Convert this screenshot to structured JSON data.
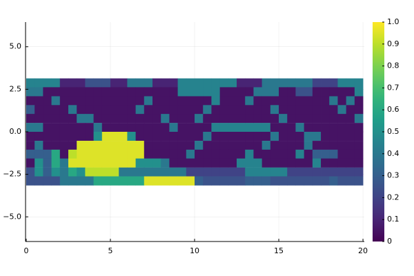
{
  "chart_data": {
    "type": "heatmap",
    "x": [
      0.25,
      0.75,
      1.25,
      1.75,
      2.25,
      2.75,
      3.25,
      3.75,
      4.25,
      4.75,
      5.25,
      5.75,
      6.25,
      6.75,
      7.25,
      7.75,
      8.25,
      8.75,
      9.25,
      9.75,
      10.25,
      10.75,
      11.25,
      11.75,
      12.25,
      12.75,
      13.25,
      13.75,
      14.25,
      14.75,
      15.25,
      15.75,
      16.25,
      16.75,
      17.25,
      17.75,
      18.25,
      18.75,
      19.25,
      19.75
    ],
    "y": [
      2.88,
      2.36,
      1.83,
      1.31,
      0.79,
      0.26,
      -0.26,
      -0.79,
      -1.31,
      -1.83,
      -2.36,
      -2.88
    ],
    "z": [
      [
        0.45,
        0.45,
        0.45,
        0.45,
        0.1,
        0.1,
        0.1,
        0.25,
        0.25,
        0.25,
        0.1,
        0.1,
        0.4,
        0.4,
        0.4,
        0.1,
        0.1,
        0.1,
        0.45,
        0.45,
        0.45,
        0.45,
        0.45,
        0.45,
        0.45,
        0.1,
        0.1,
        0.1,
        0.4,
        0.4,
        0.4,
        0.4,
        0.4,
        0.4,
        0.2,
        0.2,
        0.2,
        0.45,
        0.45,
        0.45
      ],
      [
        0.4,
        0.4,
        0.05,
        0.05,
        0.05,
        0.05,
        0.05,
        0.05,
        0.05,
        0.05,
        0.05,
        0.05,
        0.05,
        0.05,
        0.05,
        0.05,
        0.05,
        0.05,
        0.45,
        0.45,
        0.45,
        0.45,
        0.45,
        0.05,
        0.05,
        0.05,
        0.05,
        0.4,
        0.4,
        0.4,
        0.05,
        0.05,
        0.25,
        0.25,
        0.05,
        0.05,
        0.05,
        0.05,
        0.05,
        0.45
      ],
      [
        0.05,
        0.05,
        0.05,
        0.4,
        0.05,
        0.05,
        0.05,
        0.05,
        0.05,
        0.05,
        0.05,
        0.05,
        0.05,
        0.05,
        0.4,
        0.05,
        0.05,
        0.05,
        0.05,
        0.05,
        0.05,
        0.05,
        0.45,
        0.05,
        0.05,
        0.05,
        0.4,
        0.05,
        0.05,
        0.05,
        0.05,
        0.05,
        0.05,
        0.05,
        0.05,
        0.05,
        0.4,
        0.05,
        0.4,
        0.05
      ],
      [
        0.3,
        0.05,
        0.05,
        0.05,
        0.05,
        0.4,
        0.05,
        0.05,
        0.05,
        0.05,
        0.05,
        0.05,
        0.05,
        0.4,
        0.05,
        0.05,
        0.05,
        0.05,
        0.05,
        0.05,
        0.05,
        0.4,
        0.05,
        0.05,
        0.05,
        0.05,
        0.05,
        0.05,
        0.05,
        0.4,
        0.05,
        0.05,
        0.05,
        0.05,
        0.05,
        0.05,
        0.05,
        0.4,
        0.05,
        0.05
      ],
      [
        0.05,
        0.05,
        0.05,
        0.05,
        0.05,
        0.05,
        0.4,
        0.4,
        0.05,
        0.05,
        0.05,
        0.05,
        0.05,
        0.05,
        0.05,
        0.05,
        0.4,
        0.05,
        0.05,
        0.05,
        0.4,
        0.05,
        0.05,
        0.05,
        0.05,
        0.05,
        0.05,
        0.05,
        0.05,
        0.05,
        0.4,
        0.05,
        0.05,
        0.05,
        0.05,
        0.05,
        0.05,
        0.05,
        0.05,
        0.4
      ],
      [
        0.4,
        0.4,
        0.05,
        0.05,
        0.05,
        0.05,
        0.05,
        0.05,
        0.4,
        0.05,
        0.05,
        0.05,
        0.05,
        0.05,
        0.05,
        0.05,
        0.05,
        0.4,
        0.05,
        0.05,
        0.05,
        0.05,
        0.45,
        0.45,
        0.45,
        0.45,
        0.45,
        0.45,
        0.45,
        0.05,
        0.05,
        0.05,
        0.4,
        0.05,
        0.05,
        0.05,
        0.05,
        0.05,
        0.05,
        0.05
      ],
      [
        0.05,
        0.05,
        0.05,
        0.05,
        0.05,
        0.05,
        0.05,
        0.05,
        0.5,
        0.95,
        0.95,
        0.95,
        0.5,
        0.05,
        0.05,
        0.05,
        0.05,
        0.05,
        0.05,
        0.05,
        0.05,
        0.4,
        0.05,
        0.05,
        0.05,
        0.05,
        0.05,
        0.05,
        0.05,
        0.4,
        0.05,
        0.05,
        0.05,
        0.4,
        0.4,
        0.05,
        0.05,
        0.05,
        0.05,
        0.05
      ],
      [
        0.05,
        0.4,
        0.05,
        0.05,
        0.05,
        0.05,
        0.95,
        0.95,
        0.95,
        0.95,
        0.95,
        0.95,
        0.95,
        0.95,
        0.05,
        0.05,
        0.05,
        0.05,
        0.05,
        0.05,
        0.4,
        0.05,
        0.05,
        0.05,
        0.05,
        0.05,
        0.05,
        0.05,
        0.4,
        0.05,
        0.05,
        0.05,
        0.05,
        0.4,
        0.05,
        0.05,
        0.05,
        0.05,
        0.05,
        0.05
      ],
      [
        0.3,
        0.3,
        0.3,
        0.6,
        0.05,
        0.9,
        0.95,
        0.95,
        0.95,
        0.95,
        0.95,
        0.95,
        0.95,
        0.95,
        0.05,
        0.05,
        0.05,
        0.05,
        0.05,
        0.4,
        0.05,
        0.05,
        0.05,
        0.05,
        0.05,
        0.05,
        0.45,
        0.05,
        0.05,
        0.05,
        0.05,
        0.05,
        0.45,
        0.05,
        0.3,
        0.3,
        0.3,
        0.05,
        0.05,
        0.05
      ],
      [
        0.05,
        0.5,
        0.3,
        0.6,
        0.4,
        0.95,
        0.95,
        0.95,
        0.95,
        0.95,
        0.95,
        0.95,
        0.95,
        0.5,
        0.5,
        0.5,
        0.4,
        0.05,
        0.05,
        0.05,
        0.05,
        0.05,
        0.05,
        0.05,
        0.05,
        0.45,
        0.45,
        0.45,
        0.05,
        0.05,
        0.05,
        0.05,
        0.05,
        0.05,
        0.45,
        0.05,
        0.05,
        0.05,
        0.05,
        0.05
      ],
      [
        0.25,
        0.5,
        0.3,
        0.5,
        0.4,
        0.6,
        0.5,
        0.9,
        0.9,
        0.9,
        0.9,
        0.4,
        0.4,
        0.4,
        0.4,
        0.4,
        0.4,
        0.4,
        0.4,
        0.2,
        0.2,
        0.2,
        0.2,
        0.2,
        0.2,
        0.2,
        0.45,
        0.45,
        0.45,
        0.45,
        0.45,
        0.2,
        0.2,
        0.2,
        0.2,
        0.2,
        0.2,
        0.2,
        0.2,
        0.2
      ],
      [
        0.25,
        0.25,
        0.25,
        0.25,
        0.4,
        0.4,
        0.4,
        0.4,
        0.6,
        0.6,
        0.6,
        0.6,
        0.6,
        0.6,
        0.95,
        0.95,
        0.95,
        0.95,
        0.95,
        0.95,
        0.3,
        0.25,
        0.25,
        0.25,
        0.25,
        0.25,
        0.3,
        0.3,
        0.3,
        0.25,
        0.25,
        0.25,
        0.25,
        0.25,
        0.25,
        0.25,
        0.3,
        0.25,
        0.25,
        0.25
      ]
    ],
    "colormap": "viridis",
    "xlim": [
      -0.04,
      20.08
    ],
    "xticks": [
      0,
      5,
      10,
      15,
      20
    ],
    "ylim": [
      -6.45,
      6.45
    ],
    "yticks": [
      {
        "value": -5,
        "label": "−5.0"
      },
      {
        "value": -2.5,
        "label": "−2.5"
      },
      {
        "value": 0,
        "label": "0.0"
      },
      {
        "value": 2.5,
        "label": "2.5"
      },
      {
        "value": 5,
        "label": "5.0"
      }
    ],
    "zlim": [
      0,
      1
    ],
    "zticks": [
      0,
      0.1,
      0.2,
      0.3,
      0.4,
      0.5,
      0.6,
      0.7,
      0.8,
      0.9,
      {
        "value": 1,
        "label": "1.0"
      }
    ],
    "grid": true
  }
}
